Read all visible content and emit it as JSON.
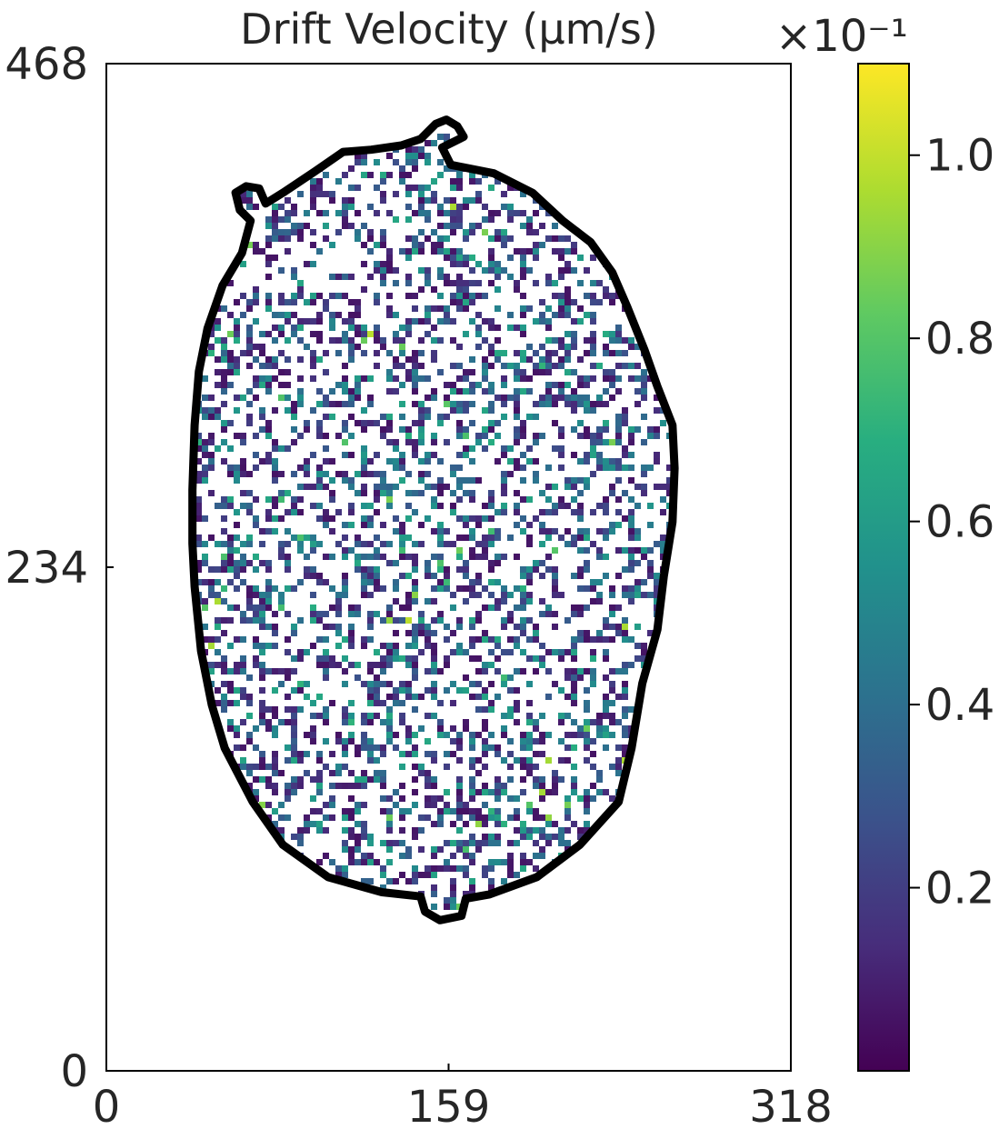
{
  "chart_data": {
    "type": "heatmap",
    "title": "Drift Velocity (μm/s)",
    "xlabel": "",
    "ylabel": "",
    "xlim": [
      0,
      318
    ],
    "ylim": [
      0,
      468
    ],
    "x_ticks": [
      "0",
      "159",
      "318"
    ],
    "y_ticks": [
      "0",
      "234",
      "468"
    ],
    "grid": false,
    "colormap": "viridis",
    "colorbar": {
      "multiplier": "×10⁻¹",
      "range": [
        0.0,
        1.1
      ],
      "ticks": [
        {
          "value": 0.2,
          "label": "0.2"
        },
        {
          "value": 0.4,
          "label": "0.4"
        },
        {
          "value": 0.6,
          "label": "0.6"
        },
        {
          "value": 0.8,
          "label": "0.8"
        },
        {
          "value": 1.0,
          "label": "1.0"
        }
      ]
    },
    "cell_outline": {
      "color": "#000000",
      "points": [
        [
          146,
          433
        ],
        [
          153,
          440
        ],
        [
          158,
          442
        ],
        [
          163,
          439
        ],
        [
          166,
          434
        ],
        [
          156,
          429
        ],
        [
          160,
          421
        ],
        [
          180,
          417
        ],
        [
          198,
          408
        ],
        [
          212,
          395
        ],
        [
          225,
          385
        ],
        [
          235,
          371
        ],
        [
          242,
          355
        ],
        [
          250,
          335
        ],
        [
          256,
          318
        ],
        [
          263,
          300
        ],
        [
          264,
          280
        ],
        [
          263,
          255
        ],
        [
          259,
          230
        ],
        [
          256,
          205
        ],
        [
          249,
          180
        ],
        [
          244,
          150
        ],
        [
          238,
          125
        ],
        [
          220,
          105
        ],
        [
          200,
          90
        ],
        [
          178,
          82
        ],
        [
          167,
          80
        ],
        [
          165,
          72
        ],
        [
          155,
          70
        ],
        [
          148,
          74
        ],
        [
          146,
          81
        ],
        [
          128,
          83
        ],
        [
          103,
          90
        ],
        [
          82,
          105
        ],
        [
          68,
          125
        ],
        [
          55,
          150
        ],
        [
          49,
          170
        ],
        [
          44,
          195
        ],
        [
          41,
          225
        ],
        [
          40,
          245
        ],
        [
          40,
          270
        ],
        [
          41,
          300
        ],
        [
          43,
          325
        ],
        [
          47,
          345
        ],
        [
          54,
          365
        ],
        [
          63,
          380
        ],
        [
          67,
          395
        ],
        [
          62,
          400
        ],
        [
          60,
          408
        ],
        [
          65,
          411
        ],
        [
          71,
          410
        ],
        [
          74,
          403
        ],
        [
          82,
          408
        ],
        [
          97,
          418
        ],
        [
          110,
          427
        ],
        [
          123,
          428
        ],
        [
          137,
          430
        ]
      ]
    }
  }
}
